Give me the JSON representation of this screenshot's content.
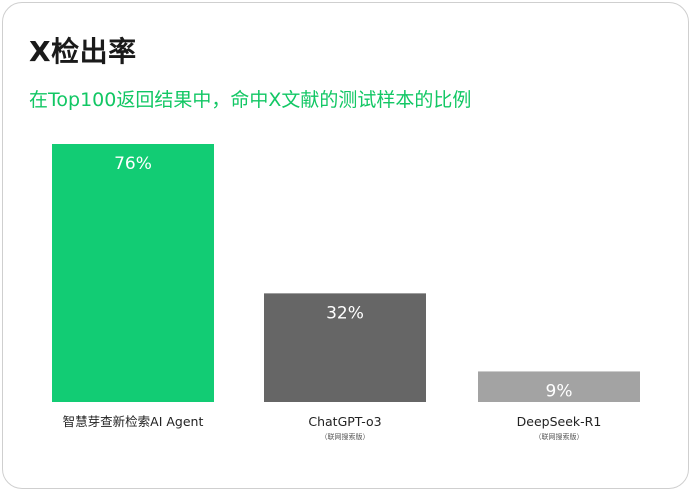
{
  "chart_data": {
    "type": "bar",
    "title": "X检出率",
    "subtitle": "在Top100返回结果中，命中X文献的测试样本的比例",
    "categories": [
      "智慧芽查新检索AI Agent",
      "ChatGPT-o3",
      "DeepSeek-R1"
    ],
    "category_notes": [
      "",
      "（联网搜索版）",
      "（联网搜索版）"
    ],
    "values": [
      76,
      32,
      9
    ],
    "value_labels": [
      "76%",
      "32%",
      "9%"
    ],
    "ylim": [
      0,
      76
    ],
    "grid": false,
    "colors": [
      "#12cc74",
      "#666666",
      "#a3a3a3"
    ]
  }
}
